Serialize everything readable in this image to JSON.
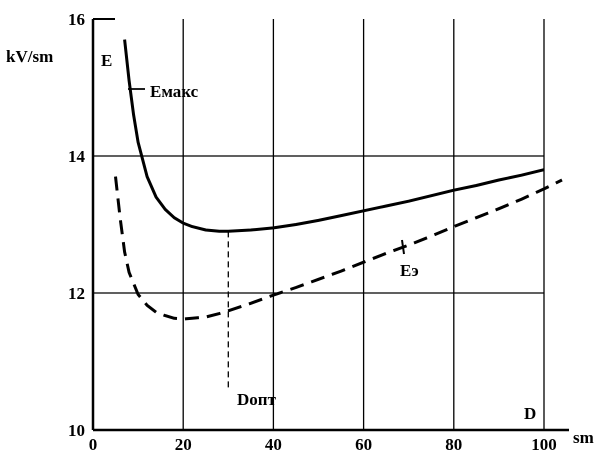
{
  "chart_data": {
    "type": "line",
    "title": "",
    "ylabel_units": "kV/sm",
    "ylabel_symbol": "E",
    "xlabel_units": "sm",
    "xlabel_symbol": "D",
    "xlim": [
      0,
      100
    ],
    "ylim": [
      10,
      16
    ],
    "xticks": [
      0,
      20,
      40,
      60,
      80,
      100
    ],
    "yticks": [
      10,
      12,
      14,
      16
    ],
    "grid": true,
    "series": [
      {
        "name": "Eмакс",
        "style": "solid",
        "color": "#000000",
        "x": [
          7,
          8,
          9,
          10,
          12,
          14,
          16,
          18,
          20,
          22,
          25,
          28,
          30,
          32,
          35,
          40,
          45,
          50,
          55,
          60,
          65,
          70,
          75,
          80,
          85,
          90,
          95,
          100
        ],
        "y": [
          15.7,
          15.1,
          14.6,
          14.2,
          13.7,
          13.4,
          13.22,
          13.1,
          13.02,
          12.97,
          12.92,
          12.9,
          12.9,
          12.91,
          12.92,
          12.95,
          13.0,
          13.06,
          13.13,
          13.2,
          13.27,
          13.34,
          13.42,
          13.5,
          13.57,
          13.65,
          13.72,
          13.8
        ]
      },
      {
        "name": "Eэ",
        "style": "dashed",
        "color": "#000000",
        "x": [
          5,
          6,
          7,
          8,
          10,
          12,
          14,
          16,
          18,
          20,
          22,
          25,
          28,
          30,
          35,
          40,
          45,
          50,
          55,
          60,
          65,
          70,
          75,
          80,
          85,
          90,
          95,
          100,
          104
        ],
        "y": [
          13.7,
          13.1,
          12.6,
          12.3,
          11.98,
          11.82,
          11.72,
          11.67,
          11.63,
          11.62,
          11.63,
          11.65,
          11.7,
          11.74,
          11.85,
          11.97,
          12.08,
          12.2,
          12.32,
          12.45,
          12.58,
          12.7,
          12.83,
          12.97,
          13.1,
          13.23,
          13.37,
          13.52,
          13.65
        ]
      }
    ],
    "annotations": [
      {
        "text": "Dопт",
        "x": 30
      }
    ]
  }
}
